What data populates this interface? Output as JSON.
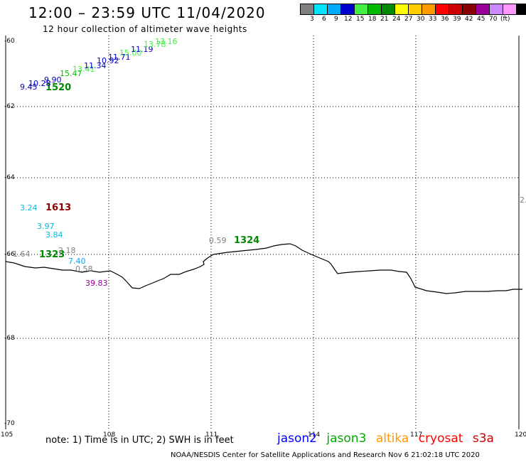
{
  "header": {
    "title": "12:00 – 23:59 UTC 11/04/2020",
    "subtitle": "12 hour collection of altimeter wave heights"
  },
  "legend": {
    "unit": "(ft)",
    "colors": [
      "#808080",
      "#00e5ff",
      "#00aaff",
      "#0000cc",
      "#44ee44",
      "#00bb00",
      "#008800",
      "#ffff00",
      "#ffcc00",
      "#ff9900",
      "#ff0000",
      "#cc0000",
      "#880000",
      "#990099",
      "#cc88ff",
      "#ff99ff",
      "#000000"
    ],
    "labels": [
      "3",
      "6",
      "9",
      "12",
      "15",
      "18",
      "21",
      "24",
      "27",
      "30",
      "33",
      "36",
      "39",
      "42",
      "45",
      "70"
    ]
  },
  "axes": {
    "x_ticks": [
      "105",
      "108",
      "111",
      "114",
      "117",
      "120"
    ],
    "y_ticks": [
      "-60",
      "-62",
      "-64",
      "-66",
      "-68",
      "-70"
    ]
  },
  "pass_labels": [
    {
      "text": "1520",
      "color": "#008800"
    },
    {
      "text": "1613",
      "color": "#880000"
    },
    {
      "text": "1323",
      "color": "#008800"
    },
    {
      "text": "1324",
      "color": "#008800"
    }
  ],
  "wave_labels": [
    {
      "text": "9.45",
      "color": "#0000cc"
    },
    {
      "text": "10.28",
      "color": "#0000cc"
    },
    {
      "text": "9.90",
      "color": "#0000cc"
    },
    {
      "text": "15.47",
      "color": "#00bb00"
    },
    {
      "text": "13.41",
      "color": "#44ee44"
    },
    {
      "text": "11.34",
      "color": "#0000cc"
    },
    {
      "text": "10.92",
      "color": "#0000cc"
    },
    {
      "text": "11.71",
      "color": "#0000cc"
    },
    {
      "text": "15.00",
      "color": "#44ee44"
    },
    {
      "text": "11.19",
      "color": "#0000cc"
    },
    {
      "text": "13.78",
      "color": "#44ee44"
    },
    {
      "text": "13.16",
      "color": "#44ee44"
    },
    {
      "text": "3.24",
      "color": "#00bbdd"
    },
    {
      "text": "3.97",
      "color": "#00bbdd"
    },
    {
      "text": "3.84",
      "color": "#00bbdd"
    },
    {
      "text": "1.64",
      "color": "#808080"
    },
    {
      "text": "2.18",
      "color": "#808080"
    },
    {
      "text": "7.40",
      "color": "#00aaff"
    },
    {
      "text": "0.58",
      "color": "#808080"
    },
    {
      "text": "39.83",
      "color": "#990099"
    },
    {
      "text": "0.59",
      "color": "#808080"
    },
    {
      "text": "2.",
      "color": "#808080"
    }
  ],
  "note": "note:  1) Time is in UTC;  2) SWH is in feet",
  "satellites": [
    {
      "name": "jason2",
      "color": "#0000ff"
    },
    {
      "name": "jason3",
      "color": "#00aa00"
    },
    {
      "name": "altika",
      "color": "#ff9900"
    },
    {
      "name": "cryosat",
      "color": "#ff0000"
    },
    {
      "name": "s3a",
      "color": "#cc0000"
    }
  ],
  "footer": "NOAA/NESDIS Center for Satellite Applications and Research    Nov  6 21:02:18 UTC 2020"
}
